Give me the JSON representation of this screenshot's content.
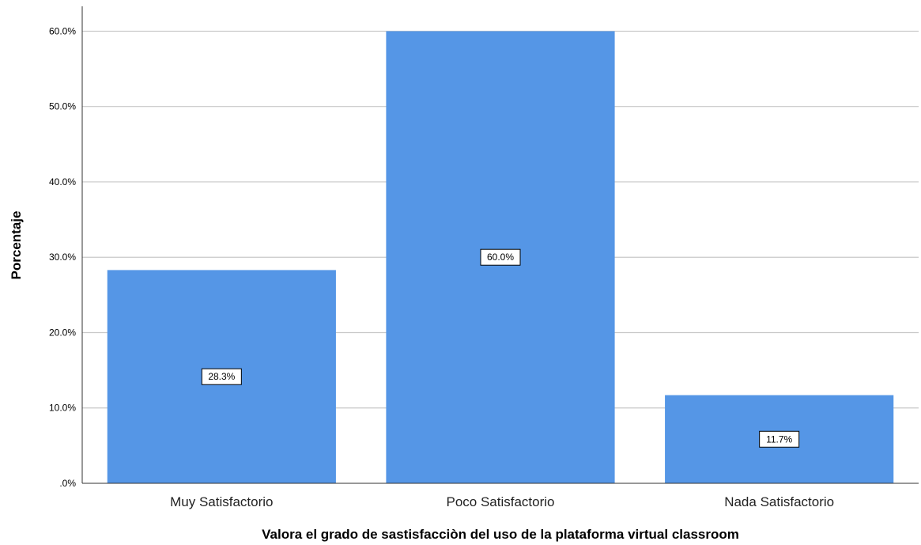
{
  "chart_data": {
    "type": "bar",
    "categories": [
      "Muy Satisfactorio",
      "Poco Satisfactorio",
      "Nada Satisfactorio"
    ],
    "values": [
      28.3,
      60.0,
      11.7
    ],
    "data_labels": [
      "28.3%",
      "60.0%",
      "11.7%"
    ],
    "title": "",
    "xlabel": "Valora el grado de sastisfacciòn del uso de la plataforma virtual classroom",
    "ylabel": "Porcentaje",
    "ylim": [
      0,
      63.3
    ],
    "yticks": [
      0,
      10,
      20,
      30,
      40,
      50,
      60
    ],
    "ytick_labels": [
      ".0%",
      "10.0%",
      "20.0%",
      "30.0%",
      "40.0%",
      "50.0%",
      "60.0%"
    ],
    "grid": true,
    "bar_color": "#5596e6",
    "grid_color": "#c8c8c8"
  }
}
